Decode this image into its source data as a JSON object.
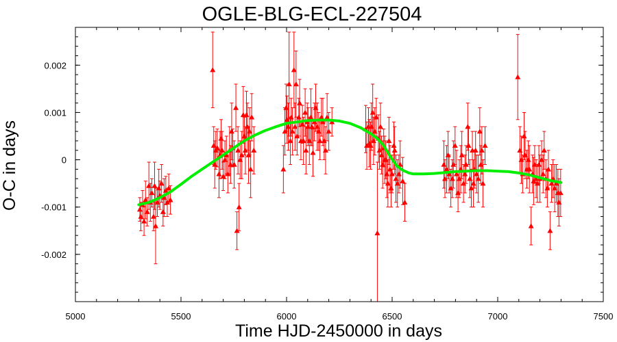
{
  "chart_data": {
    "type": "scatter",
    "title": "OGLE-BLG-ECL-227504",
    "xlabel": "Time HJD-2450000 in days",
    "ylabel": "O-C in days",
    "xlim": [
      5000,
      7500
    ],
    "ylim": [
      -0.003,
      0.0028
    ],
    "x_ticks": [
      5000,
      5500,
      6000,
      6500,
      7000,
      7500
    ],
    "x_tick_labels": [
      "5000",
      "5500",
      "6000",
      "6500",
      "7000",
      "7500"
    ],
    "y_ticks": [
      -0.002,
      -0.001,
      0,
      0.001,
      0.002
    ],
    "y_tick_labels": [
      "-0.002",
      "-0.001",
      "0",
      "0.001",
      "0.002"
    ],
    "grid": false,
    "legend": "none",
    "series": [
      {
        "kind": "points_with_errorbars",
        "marker": "triangle-up",
        "color": "#ff0000",
        "points": [
          [
            5305,
            -0.00105,
            0.00025
          ],
          [
            5310,
            -0.0012,
            0.0003
          ],
          [
            5318,
            -0.00095,
            0.0003
          ],
          [
            5325,
            -0.0013,
            0.0003
          ],
          [
            5332,
            -0.00085,
            0.0004
          ],
          [
            5340,
            -0.0011,
            0.0003
          ],
          [
            5348,
            -0.00055,
            0.0005
          ],
          [
            5355,
            -0.0009,
            0.0004
          ],
          [
            5362,
            -0.0007,
            0.0003
          ],
          [
            5370,
            -0.0012,
            0.0003
          ],
          [
            5375,
            -0.00055,
            0.0005
          ],
          [
            5380,
            -0.0014,
            0.0008
          ],
          [
            5388,
            -0.0009,
            0.0003
          ],
          [
            5395,
            -0.0006,
            0.0004
          ],
          [
            5400,
            -0.00075,
            0.0003
          ],
          [
            5408,
            -0.0005,
            0.0004
          ],
          [
            5415,
            -0.0011,
            0.0003
          ],
          [
            5420,
            -0.0008,
            0.0004
          ],
          [
            5428,
            -0.00065,
            0.0003
          ],
          [
            5435,
            -0.0009,
            0.0003
          ],
          [
            5442,
            -0.0006,
            0.0003
          ],
          [
            5450,
            -0.00085,
            0.0003
          ],
          [
            5650,
            0.0019,
            0.0008
          ],
          [
            5655,
            0.0003,
            0.0004
          ],
          [
            5660,
            -0.0001,
            0.0005
          ],
          [
            5665,
            0.0002,
            0.0004
          ],
          [
            5672,
            0.00025,
            0.0004
          ],
          [
            5680,
            -0.0003,
            0.0005
          ],
          [
            5685,
            0.0001,
            0.0005
          ],
          [
            5690,
            0.00045,
            0.0004
          ],
          [
            5695,
            0.0002,
            0.0004
          ],
          [
            5700,
            -0.00035,
            0.0003
          ],
          [
            5708,
            0.0,
            0.0004
          ],
          [
            5715,
            0.0001,
            0.0004
          ],
          [
            5722,
            -0.0003,
            0.0004
          ],
          [
            5730,
            0.0002,
            0.0005
          ],
          [
            5735,
            -0.0001,
            0.0004
          ],
          [
            5740,
            0.0006,
            0.0006
          ],
          [
            5745,
            0.00025,
            0.0004
          ],
          [
            5752,
            -0.0001,
            0.0005
          ],
          [
            5760,
            0.0011,
            0.0005
          ],
          [
            5765,
            -0.0015,
            0.0004
          ],
          [
            5770,
            0.0002,
            0.0005
          ],
          [
            5775,
            -0.001,
            0.0005
          ],
          [
            5780,
            0.0,
            0.0004
          ],
          [
            5788,
            0.0001,
            0.0005
          ],
          [
            5795,
            0.00095,
            0.0006
          ],
          [
            5800,
            0.0005,
            0.0004
          ],
          [
            5805,
            0.0002,
            0.0005
          ],
          [
            5810,
            0.00095,
            0.0005
          ],
          [
            5815,
            0.0007,
            0.0005
          ],
          [
            5820,
            0.0001,
            0.0006
          ],
          [
            5825,
            0.0006,
            0.0005
          ],
          [
            5830,
            -0.0002,
            0.0006
          ],
          [
            5835,
            0.0009,
            0.0005
          ],
          [
            5845,
            0.0002,
            0.0005
          ],
          [
            5985,
            -0.0002,
            0.0005
          ],
          [
            5992,
            0.0006,
            0.0005
          ],
          [
            5998,
            0.0011,
            0.0005
          ],
          [
            6002,
            0.00085,
            0.0005
          ],
          [
            6008,
            0.0007,
            0.0005
          ],
          [
            6012,
            0.0016,
            0.0011
          ],
          [
            6018,
            0.0004,
            0.0005
          ],
          [
            6022,
            0.0009,
            0.0004
          ],
          [
            6028,
            0.0006,
            0.0005
          ],
          [
            6035,
            0.0019,
            0.0008
          ],
          [
            6040,
            0.0007,
            0.0005
          ],
          [
            6045,
            0.0016,
            0.0007
          ],
          [
            6050,
            0.0005,
            0.0004
          ],
          [
            6058,
            0.0009,
            0.0004
          ],
          [
            6062,
            0.0012,
            0.0005
          ],
          [
            6068,
            0.0004,
            0.0004
          ],
          [
            6075,
            0.00075,
            0.0004
          ],
          [
            6080,
            0.0004,
            0.0005
          ],
          [
            6088,
            0.001,
            0.0005
          ],
          [
            6092,
            0.0002,
            0.0005
          ],
          [
            6098,
            0.0008,
            0.0004
          ],
          [
            6102,
            0.0007,
            0.0004
          ],
          [
            6108,
            0.0004,
            0.0005
          ],
          [
            6115,
            0.0009,
            0.0006
          ],
          [
            6120,
            0.0007,
            0.0004
          ],
          [
            6125,
            0.00015,
            0.0005
          ],
          [
            6132,
            0.0008,
            0.0004
          ],
          [
            6138,
            0.0011,
            0.0005
          ],
          [
            6145,
            0.0007,
            0.0005
          ],
          [
            6152,
            0.0006,
            0.0004
          ],
          [
            6158,
            0.0004,
            0.0004
          ],
          [
            6165,
            0.0009,
            0.0004
          ],
          [
            6172,
            0.0008,
            0.0005
          ],
          [
            6178,
            0.0004,
            0.0004
          ],
          [
            6185,
            0.0002,
            0.0005
          ],
          [
            6192,
            0.0009,
            0.0005
          ],
          [
            6200,
            0.0006,
            0.0004
          ],
          [
            6215,
            0.0008,
            0.0003
          ],
          [
            6375,
            0.00065,
            0.0005
          ],
          [
            6380,
            0.0003,
            0.0005
          ],
          [
            6388,
            0.0007,
            0.0004
          ],
          [
            6392,
            0.00035,
            0.0005
          ],
          [
            6398,
            0.0003,
            0.0005
          ],
          [
            6402,
            0.0007,
            0.0005
          ],
          [
            6408,
            0.001,
            0.0006
          ],
          [
            6412,
            0.0004,
            0.0005
          ],
          [
            6418,
            0.0006,
            0.0005
          ],
          [
            6425,
            0.0009,
            0.0004
          ],
          [
            6430,
            -0.00155,
            0.0015
          ],
          [
            6435,
            0.00045,
            0.0005
          ],
          [
            6440,
            0.0002,
            0.0004
          ],
          [
            6445,
            0.0007,
            0.0005
          ],
          [
            6450,
            0.0001,
            0.0004
          ],
          [
            6455,
            -0.0001,
            0.0005
          ],
          [
            6460,
            0.00025,
            0.0004
          ],
          [
            6465,
            0.0,
            0.0005
          ],
          [
            6470,
            0.0,
            0.0004
          ],
          [
            6475,
            -0.0003,
            0.0005
          ],
          [
            6480,
            -0.0005,
            0.0005
          ],
          [
            6485,
            0.0004,
            0.0005
          ],
          [
            6490,
            -0.0002,
            0.0005
          ],
          [
            6495,
            -0.0006,
            0.0004
          ],
          [
            6500,
            -0.0003,
            0.0004
          ],
          [
            6508,
            0.0003,
            0.0005
          ],
          [
            6512,
            0.0002,
            0.0005
          ],
          [
            6518,
            -0.0004,
            0.0005
          ],
          [
            6525,
            -0.0005,
            0.0005
          ],
          [
            6532,
            -0.0003,
            0.0004
          ],
          [
            6538,
            -0.0001,
            0.0005
          ],
          [
            6550,
            -0.00045,
            0.0005
          ],
          [
            6560,
            -0.0009,
            0.0004
          ],
          [
            6745,
            -0.0001,
            0.0005
          ],
          [
            6750,
            -0.0004,
            0.0004
          ],
          [
            6758,
            -0.0002,
            0.0005
          ],
          [
            6765,
            0.0001,
            0.0005
          ],
          [
            6770,
            -0.0003,
            0.0004
          ],
          [
            6778,
            -0.0006,
            0.0004
          ],
          [
            6785,
            -0.0004,
            0.0004
          ],
          [
            6790,
            -0.0001,
            0.0005
          ],
          [
            6798,
            0.0003,
            0.0004
          ],
          [
            6805,
            -0.0003,
            0.0005
          ],
          [
            6812,
            -0.0007,
            0.0004
          ],
          [
            6818,
            -0.0004,
            0.0004
          ],
          [
            6825,
            -0.0002,
            0.0005
          ],
          [
            6830,
            0.0001,
            0.0005
          ],
          [
            6838,
            -0.0005,
            0.0004
          ],
          [
            6845,
            -0.0003,
            0.0004
          ],
          [
            6850,
            -0.0001,
            0.0004
          ],
          [
            6858,
            0.0007,
            0.0005
          ],
          [
            6862,
            0.0003,
            0.0004
          ],
          [
            6868,
            -0.0004,
            0.0004
          ],
          [
            6875,
            -0.0006,
            0.0004
          ],
          [
            6880,
            0.0002,
            0.0004
          ],
          [
            6885,
            -0.0005,
            0.0005
          ],
          [
            6890,
            -0.0002,
            0.0004
          ],
          [
            6895,
            0.0002,
            0.0004
          ],
          [
            6900,
            -0.0003,
            0.0004
          ],
          [
            6908,
            -0.0004,
            0.0005
          ],
          [
            6915,
            0.0006,
            0.0005
          ],
          [
            6920,
            -0.0001,
            0.0004
          ],
          [
            6925,
            0.0002,
            0.0005
          ],
          [
            6930,
            -0.0005,
            0.0005
          ],
          [
            6940,
            0.0003,
            0.0004
          ],
          [
            7095,
            0.00175,
            0.0009
          ],
          [
            7105,
            0.0002,
            0.0005
          ],
          [
            7112,
            0.0,
            0.0005
          ],
          [
            7118,
            -0.0003,
            0.0004
          ],
          [
            7125,
            0.0005,
            0.0005
          ],
          [
            7130,
            0.0001,
            0.0005
          ],
          [
            7138,
            -0.0002,
            0.0004
          ],
          [
            7145,
            0.0,
            0.0004
          ],
          [
            7150,
            -0.0002,
            0.0005
          ],
          [
            7158,
            -0.0014,
            0.0004
          ],
          [
            7165,
            -0.0003,
            0.0004
          ],
          [
            7170,
            -0.00045,
            0.0005
          ],
          [
            7175,
            -0.0001,
            0.0004
          ],
          [
            7182,
            -0.0004,
            0.0004
          ],
          [
            7188,
            -0.0005,
            0.0004
          ],
          [
            7195,
            -0.0001,
            0.0004
          ],
          [
            7200,
            -0.0004,
            0.0005
          ],
          [
            7208,
            0.0,
            0.0004
          ],
          [
            7215,
            -0.0003,
            0.0004
          ],
          [
            7220,
            0.0002,
            0.0004
          ],
          [
            7228,
            -0.0004,
            0.0004
          ],
          [
            7235,
            -0.0006,
            0.0004
          ],
          [
            7240,
            -0.0002,
            0.0004
          ],
          [
            7248,
            -0.0015,
            0.0004
          ],
          [
            7255,
            -0.0005,
            0.0004
          ],
          [
            7262,
            -0.0004,
            0.0004
          ],
          [
            7270,
            -0.0006,
            0.0005
          ],
          [
            7278,
            -0.0005,
            0.0004
          ],
          [
            7285,
            -0.0007,
            0.0005
          ],
          [
            7290,
            -0.0009,
            0.0005
          ],
          [
            7298,
            -0.0007,
            0.0005
          ]
        ]
      },
      {
        "kind": "fit_curve",
        "color": "#00ee00",
        "x": [
          5300,
          5350,
          5400,
          5450,
          5500,
          5550,
          5600,
          5650,
          5700,
          5750,
          5800,
          5850,
          5900,
          5950,
          6000,
          6050,
          6100,
          6150,
          6200,
          6250,
          6300,
          6350,
          6400,
          6430,
          6460,
          6490,
          6520,
          6550,
          6580,
          6600,
          6650,
          6700,
          6750,
          6800,
          6850,
          6900,
          6950,
          7000,
          7050,
          7100,
          7150,
          7200,
          7250,
          7300
        ],
        "y": [
          -0.00095,
          -0.0009,
          -0.0008,
          -0.00068,
          -0.00052,
          -0.00035,
          -0.0002,
          -5e-05,
          0.0001,
          0.00025,
          0.0004,
          0.00052,
          0.00062,
          0.0007,
          0.00077,
          0.0008,
          0.00083,
          0.00084,
          0.00084,
          0.00082,
          0.00077,
          0.00068,
          0.00055,
          0.00045,
          0.0003,
          8e-05,
          -0.00012,
          -0.00022,
          -0.00028,
          -0.0003,
          -0.0003,
          -0.00029,
          -0.00027,
          -0.00025,
          -0.00024,
          -0.00023,
          -0.00023,
          -0.00024,
          -0.00025,
          -0.00028,
          -0.00032,
          -0.00038,
          -0.00044,
          -0.00048
        ]
      }
    ]
  }
}
